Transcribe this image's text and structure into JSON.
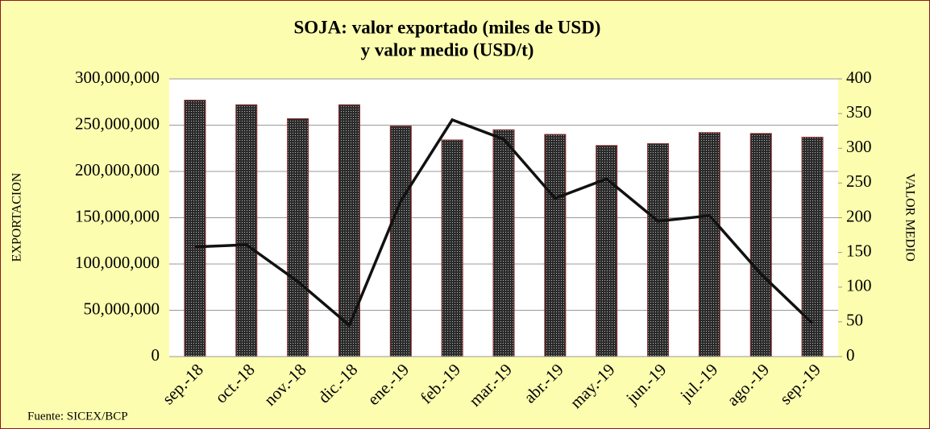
{
  "chart_data": {
    "type": "bar_line",
    "title_lines": [
      "SOJA:  valor exportado (miles de USD)",
      "y valor medio (USD/t)"
    ],
    "ylabel": "EXPORTACION",
    "y2label": "VALOR MEDIO",
    "source": "Fuente: SICEX/BCP",
    "categories": [
      "sep.-18",
      "oct.-18",
      "nov.-18",
      "dic.-18",
      "ene.-19",
      "feb.-19",
      "mar.-19",
      "abr.-19",
      "may.-19",
      "jun.-19",
      "jul.-19",
      "ago.-19",
      "sep.-19"
    ],
    "series": [
      {
        "type": "bar",
        "color": "#2a2a2a",
        "values": [
          277000000,
          272000000,
          257000000,
          272000000,
          249000000,
          234000000,
          245000000,
          240000000,
          228000000,
          230000000,
          242000000,
          241000000,
          237000000
        ]
      },
      {
        "type": "line",
        "axis": "y2",
        "color": "#111111",
        "values": [
          158,
          161,
          108,
          45,
          224,
          341,
          313,
          228,
          256,
          195,
          203,
          119,
          48
        ]
      }
    ],
    "ylim": [
      0,
      300000000
    ],
    "yticks": [
      0,
      {
        "value": 50000000,
        "label": "50,000,000"
      },
      {
        "value": 100000000,
        "label": "100,000,000"
      },
      {
        "value": 150000000,
        "label": "150,000,000"
      },
      {
        "value": 200000000,
        "label": "200,000,000"
      },
      {
        "value": 250000000,
        "label": "250,000,000"
      },
      {
        "value": 300000000,
        "label": "300,000,000"
      }
    ],
    "y2lim": [
      0,
      400
    ],
    "y2ticks": [
      0,
      50,
      100,
      150,
      200,
      250,
      300,
      350,
      400
    ],
    "grid": true
  }
}
